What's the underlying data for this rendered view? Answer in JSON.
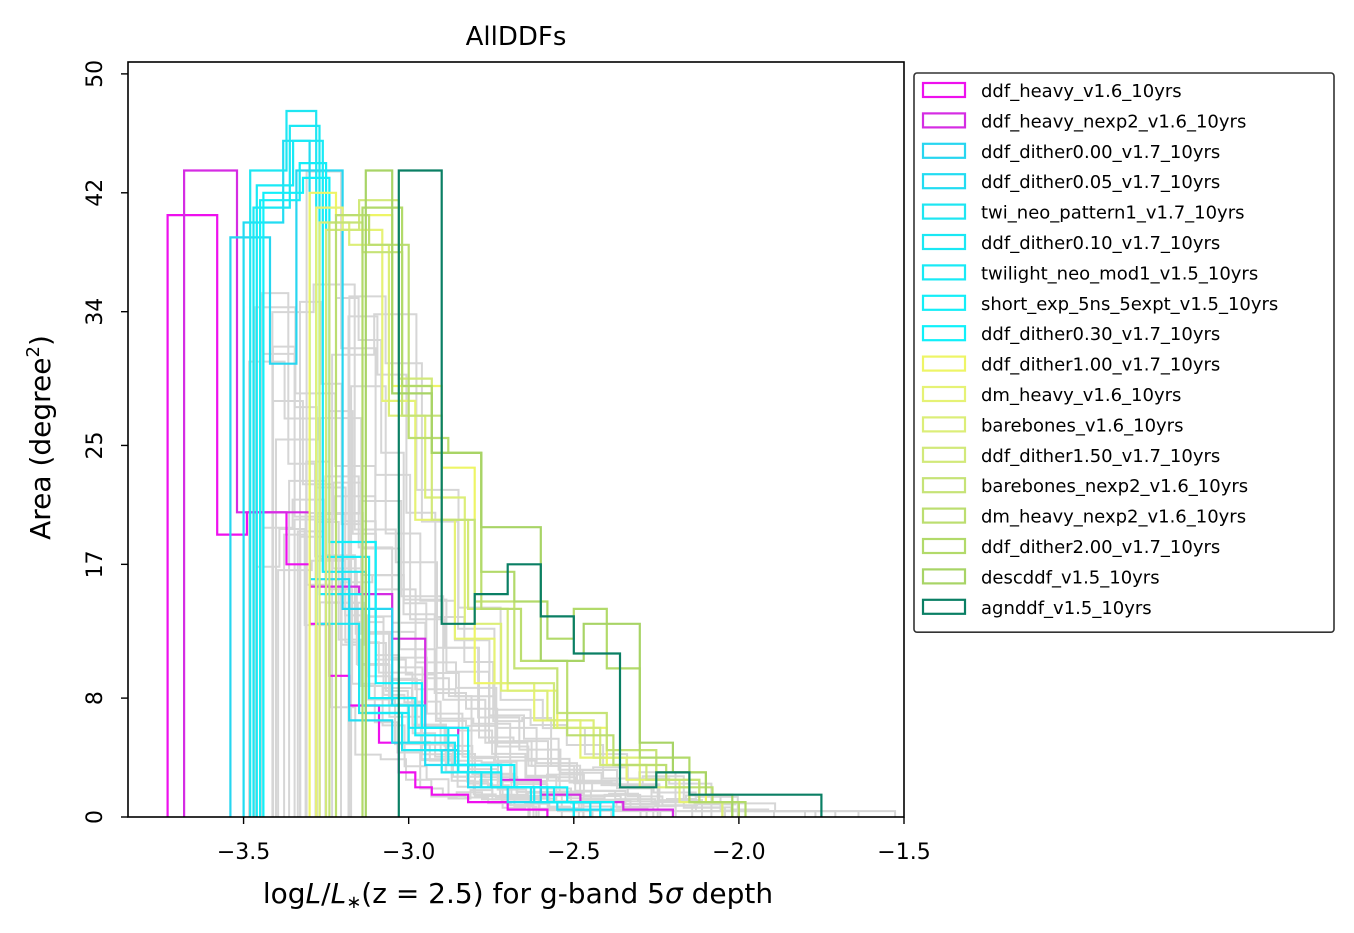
{
  "chart_data": {
    "type": "histogram",
    "title": "AllDDFs",
    "xlabel": "logL/L*(z=2.5) for g-band 5σ depth",
    "xlabel_parts": {
      "pre": "log",
      "L1": "L",
      "slash": "/",
      "L2": "L",
      "star": "∗",
      "mid": "(z = 2.5) for g-band 5",
      "sigma": "σ",
      "post": " depth"
    },
    "ylabel": "Area (degree²)",
    "ylabel_parts": {
      "main": "Area (degree",
      "sup": "2",
      "close": ")"
    },
    "xlim": [
      -3.85,
      -1.5
    ],
    "ylim": [
      0,
      50.8
    ],
    "xticks": [
      -3.5,
      -3.0,
      -2.5,
      -2.0,
      -1.5
    ],
    "xtick_labels": [
      "−3.5",
      "−3.0",
      "−2.5",
      "−2.0",
      "−1.5"
    ],
    "yticks": [
      0,
      8,
      17,
      25,
      34,
      42,
      50
    ],
    "ytick_labels": [
      "0",
      "8",
      "17",
      "25",
      "34",
      "42",
      "50"
    ],
    "legend_position": "outside-right",
    "background_runs": {
      "color": "#d6d6d6",
      "count": 30
    },
    "series": [
      {
        "name": "ddf_heavy_v1.6_10yrs",
        "color": "#ee10ee",
        "edges": [
          -3.73,
          -3.58,
          -3.49,
          -3.42,
          -3.37,
          -3.3,
          -3.24,
          -3.18,
          -3.09,
          -3.03,
          -2.98,
          -2.93,
          -2.87,
          -2.82,
          -2.76,
          -2.7,
          -2.64,
          -2.58
        ],
        "counts": [
          40.5,
          19.0,
          20.5,
          20.5,
          17.0,
          13.0,
          9.5,
          7.5,
          5.0,
          3.0,
          2.0,
          1.5,
          1.5,
          1.0,
          1.0,
          0.5,
          0.5
        ]
      },
      {
        "name": "ddf_heavy_nexp2_v1.6_10yrs",
        "color": "#d52ce3",
        "edges": [
          -3.68,
          -3.52,
          -3.4,
          -3.3,
          -3.15,
          -3.05,
          -2.95,
          -2.85,
          -2.72,
          -2.6,
          -2.48,
          -2.35,
          -2.2
        ],
        "counts": [
          43.5,
          20.5,
          20.5,
          15.5,
          15.0,
          12.0,
          6.0,
          3.5,
          2.5,
          1.5,
          1.0,
          0.5
        ]
      },
      {
        "name": "ddf_dither0.00_v1.7_10yrs",
        "color": "#27d6f0",
        "edges": [
          -3.54,
          -3.42,
          -3.34,
          -3.2,
          -3.05,
          -2.95,
          -2.85,
          -2.75,
          -2.6,
          -2.5,
          -2.38
        ],
        "counts": [
          39.0,
          30.5,
          43.5,
          14.0,
          7.5,
          4.5,
          3.0,
          2.0,
          1.0,
          0.5
        ]
      },
      {
        "name": "ddf_dither0.05_v1.7_10yrs",
        "color": "#22dcf2",
        "edges": [
          -3.5,
          -3.38,
          -3.3,
          -3.18,
          -3.05,
          -2.95,
          -2.82,
          -2.7,
          -2.55,
          -2.45
        ],
        "counts": [
          40.0,
          45.5,
          16.0,
          6.5,
          5.0,
          3.5,
          2.0,
          1.0,
          0.5
        ]
      },
      {
        "name": "twi_neo_pattern1_v1.7_10yrs",
        "color": "#1ee6f2",
        "edges": [
          -3.48,
          -3.37,
          -3.28,
          -3.15,
          -3.02,
          -2.9,
          -2.78,
          -2.63,
          -2.5
        ],
        "counts": [
          43.5,
          47.5,
          13.0,
          7.0,
          4.5,
          3.0,
          2.0,
          1.0
        ]
      },
      {
        "name": "ddf_dither0.10_v1.7_10yrs",
        "color": "#1ae8f4",
        "edges": [
          -3.47,
          -3.36,
          -3.27,
          -3.14,
          -3.0,
          -2.88,
          -2.75,
          -2.62,
          -2.5
        ],
        "counts": [
          41.0,
          46.5,
          15.0,
          7.5,
          6.0,
          3.5,
          2.0,
          1.0
        ]
      },
      {
        "name": "twilight_neo_mod1_v1.5_10yrs",
        "color": "#18eaf6",
        "edges": [
          -3.46,
          -3.35,
          -3.26,
          -3.13,
          -3.0,
          -2.86,
          -2.72,
          -2.58,
          -2.45
        ],
        "counts": [
          42.5,
          45.5,
          16.5,
          7.0,
          5.0,
          3.5,
          2.0,
          1.0
        ]
      },
      {
        "name": "short_exp_5ns_5expt_v1.5_10yrs",
        "color": "#14eef8",
        "edges": [
          -3.45,
          -3.33,
          -3.25,
          -3.12,
          -2.98,
          -2.85,
          -2.72,
          -2.56,
          -2.42
        ],
        "counts": [
          41.5,
          44.0,
          17.5,
          8.0,
          5.5,
          3.0,
          2.0,
          1.0
        ]
      },
      {
        "name": "ddf_dither0.30_v1.7_10yrs",
        "color": "#10f0fa",
        "edges": [
          -3.44,
          -3.32,
          -3.24,
          -3.1,
          -2.96,
          -2.82,
          -2.68,
          -2.52,
          -2.38
        ],
        "counts": [
          42.0,
          43.0,
          18.5,
          9.0,
          6.0,
          3.5,
          2.0,
          1.0
        ]
      },
      {
        "name": "ddf_dither1.00_v1.7_10yrs",
        "color": "#eef566",
        "edges": [
          -3.3,
          -3.22,
          -3.05,
          -2.9,
          -2.8,
          -2.7,
          -2.55,
          -2.4,
          -2.25,
          -2.1,
          -2.02
        ],
        "counts": [
          42.0,
          40.5,
          29.0,
          23.5,
          9.0,
          8.5,
          6.0,
          3.5,
          3.0,
          1.0
        ]
      },
      {
        "name": "dm_heavy_v1.6_10yrs",
        "color": "#e6f275",
        "edges": [
          -3.28,
          -3.2,
          -3.08,
          -2.98,
          -2.86,
          -2.74,
          -2.62,
          -2.48,
          -2.34,
          -2.18,
          -2.05
        ],
        "counts": [
          41.0,
          39.5,
          28.0,
          20.0,
          12.0,
          9.0,
          6.5,
          4.0,
          2.5,
          1.0
        ]
      },
      {
        "name": "barebones_v1.6_10yrs",
        "color": "#dcee78",
        "edges": [
          -3.27,
          -3.18,
          -3.06,
          -2.95,
          -2.83,
          -2.72,
          -2.58,
          -2.44,
          -2.3,
          -2.15,
          -2.05
        ],
        "counts": [
          40.0,
          38.5,
          27.0,
          21.5,
          13.0,
          8.5,
          6.5,
          4.0,
          2.0,
          1.0
        ]
      },
      {
        "name": "ddf_dither1.50_v1.7_10yrs",
        "color": "#d2e97a",
        "edges": [
          -3.25,
          -3.15,
          -3.03,
          -2.93,
          -2.82,
          -2.7,
          -2.56,
          -2.42,
          -2.28,
          -2.12,
          -2.02
        ],
        "counts": [
          39.5,
          41.5,
          29.5,
          20.0,
          14.0,
          9.0,
          6.0,
          3.5,
          2.5,
          1.0
        ]
      },
      {
        "name": "barebones_nexp2_v1.6_10yrs",
        "color": "#c6e377",
        "edges": [
          -3.24,
          -3.14,
          -3.02,
          -2.9,
          -2.8,
          -2.68,
          -2.55,
          -2.4,
          -2.25,
          -2.12,
          -2.0
        ],
        "counts": [
          40.0,
          38.0,
          27.0,
          20.0,
          14.5,
          10.0,
          7.0,
          4.5,
          2.5,
          1.0
        ]
      },
      {
        "name": "dm_heavy_nexp2_v1.6_10yrs",
        "color": "#bcde70",
        "edges": [
          -3.22,
          -3.12,
          -3.0,
          -2.88,
          -2.78,
          -2.66,
          -2.52,
          -2.38,
          -2.22,
          -2.08,
          -2.0
        ],
        "counts": [
          40.5,
          38.5,
          25.5,
          24.5,
          14.0,
          10.5,
          5.5,
          3.5,
          2.0,
          1.0
        ]
      },
      {
        "name": "ddf_dither2.00_v1.7_10yrs",
        "color": "#b2da6a",
        "edges": [
          -3.14,
          -3.02,
          -2.93,
          -2.78,
          -2.68,
          -2.58,
          -2.5,
          -2.4,
          -2.3,
          -2.15,
          -1.98
        ],
        "counts": [
          41.0,
          29.0,
          24.5,
          16.5,
          14.5,
          12.0,
          14.0,
          10.0,
          4.0,
          1.0
        ]
      },
      {
        "name": "descddf_v1.5_10yrs",
        "color": "#a8d466",
        "edges": [
          -3.13,
          -3.05,
          -2.93,
          -2.78,
          -2.6,
          -2.47,
          -2.3,
          -2.2,
          -2.1,
          -2.02
        ],
        "counts": [
          43.5,
          28.5,
          24.5,
          19.5,
          10.5,
          13.0,
          5.0,
          3.0,
          1.5
        ]
      },
      {
        "name": "agnddf_v1.5_10yrs",
        "color": "#0a7f64",
        "edges": [
          -3.03,
          -2.9,
          -2.8,
          -2.7,
          -2.6,
          -2.5,
          -2.36,
          -2.25,
          -2.15,
          -2.0,
          -1.75
        ],
        "counts": [
          43.5,
          13.0,
          15.0,
          17.0,
          13.5,
          11.0,
          2.0,
          3.0,
          1.5,
          1.5
        ]
      }
    ]
  }
}
